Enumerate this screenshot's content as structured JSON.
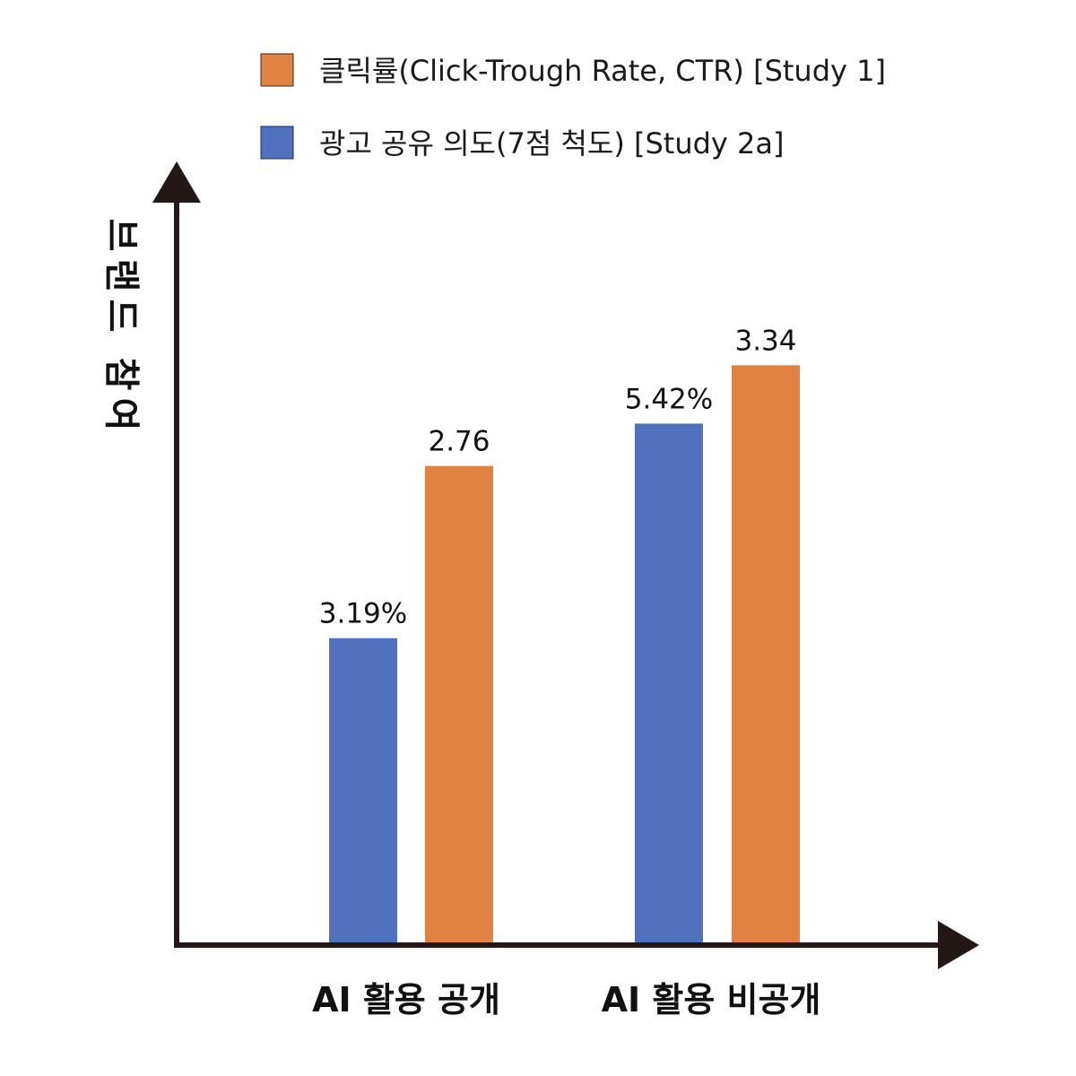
{
  "chart_data": {
    "type": "bar",
    "categories": [
      "AI 활용 공개",
      "AI 활용 비공개"
    ],
    "series": [
      {
        "name": "광고 공유 의도(7점 척도) [Study 2a]",
        "values": [
          3.19,
          5.42
        ],
        "labels": [
          "3.19%",
          "5.42%"
        ],
        "color": "#5072be"
      },
      {
        "name": "클릭률(Click-Trough Rate, CTR) [Study 1]",
        "values": [
          2.76,
          3.34
        ],
        "labels": [
          "2.76",
          "3.34"
        ],
        "color": "#df8242"
      }
    ],
    "legend_order": [
      1,
      0
    ],
    "legend_position": "top",
    "ylabel": "브랜드 참여",
    "xlabel": "",
    "grid": false,
    "axis_color": "#231815"
  }
}
